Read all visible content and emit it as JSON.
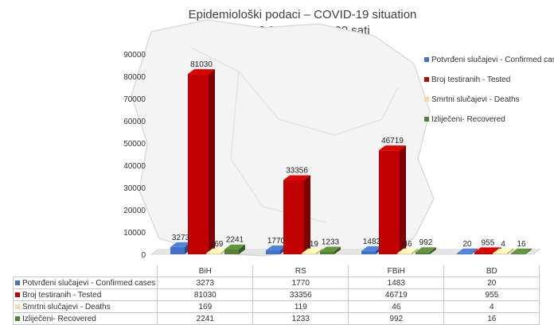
{
  "chart_data": {
    "type": "bar",
    "title": "Epidemiološki podaci – COVID-19 situation",
    "subtitle": "19.06.2020. do 12.00 sati",
    "categories": [
      "BiH",
      "RS",
      "FBiH",
      "BD"
    ],
    "series": [
      {
        "name": "Potvrđeni slučajevi - Confirmed cases",
        "color": "#4472C4",
        "values": [
          3273,
          1770,
          1483,
          20
        ]
      },
      {
        "name": "Broj testiranih - Tested",
        "color": "#C00000",
        "values": [
          81030,
          33356,
          46719,
          955
        ]
      },
      {
        "name": "Smrtni slučajevi - Deaths",
        "color": "#F2DCA0",
        "values": [
          169,
          119,
          46,
          4
        ]
      },
      {
        "name": "Izliječeni- Recovered",
        "color": "#548235",
        "values": [
          2241,
          1233,
          992,
          16
        ]
      }
    ],
    "ylim": [
      0,
      90000
    ],
    "yticks": [
      0,
      10000,
      20000,
      30000,
      40000,
      50000,
      60000,
      70000,
      80000,
      90000
    ],
    "grid": false,
    "legend_position": "right",
    "data_table": true
  }
}
